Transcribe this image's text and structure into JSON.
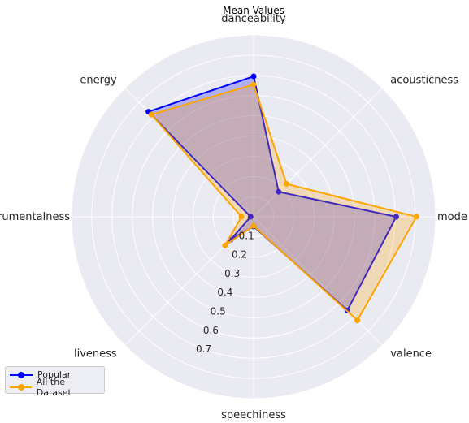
{
  "chart_data": {
    "type": "radar",
    "title": "Mean Values",
    "categories": [
      "danceability",
      "acousticness",
      "mode",
      "valence",
      "speechiness",
      "liveness",
      "instrumentalness",
      "energy"
    ],
    "series": [
      {
        "name": "Popular",
        "color": "#0000ff",
        "fill": "#0000ff",
        "values": [
          0.695,
          0.175,
          0.705,
          0.655,
          0.048,
          0.16,
          0.015,
          0.735
        ]
      },
      {
        "name": "All the Dataset",
        "color": "#ffa500",
        "fill": "#ffa500",
        "values": [
          0.655,
          0.23,
          0.805,
          0.725,
          0.045,
          0.2,
          0.06,
          0.715
        ]
      }
    ],
    "rticks": [
      "0.1",
      "0.2",
      "0.3",
      "0.4",
      "0.5",
      "0.6",
      "0.7"
    ],
    "rlim": [
      0,
      0.9
    ],
    "grid": true,
    "legend_position": "lower-left",
    "background": "#eaeaf2"
  }
}
